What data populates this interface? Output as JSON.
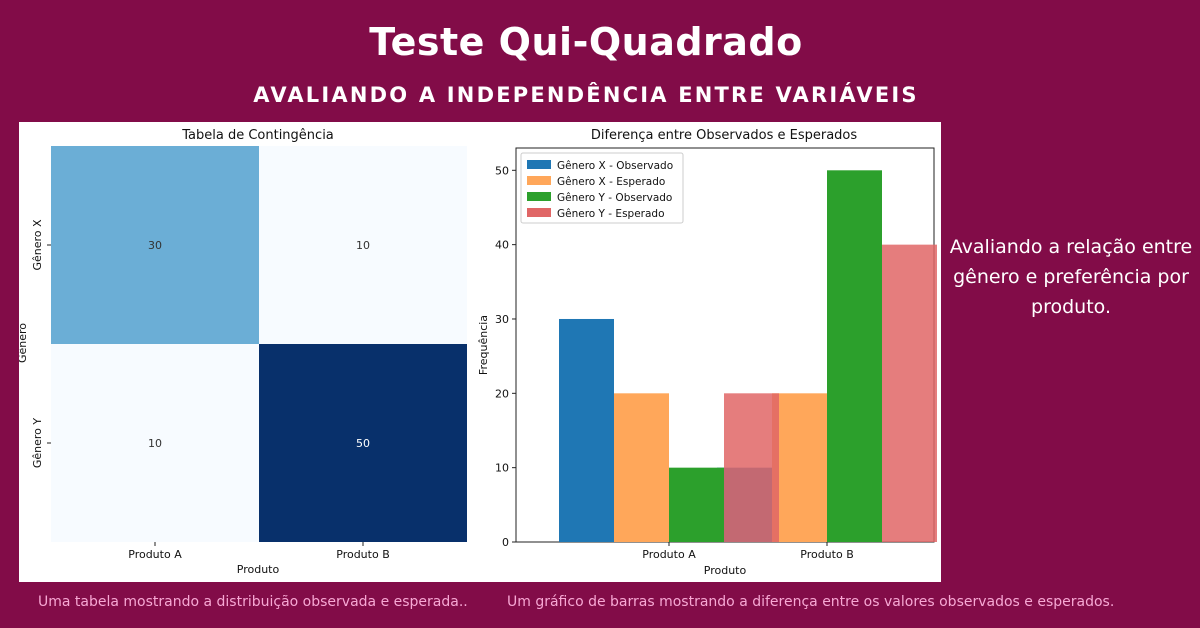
{
  "header": {
    "title": "Teste Qui-Quadrado",
    "subtitle": "AVALIANDO A INDEPENDÊNCIA ENTRE VARIÁVEIS"
  },
  "side_note": "Avaliando a relação entre gênero e preferência por produto.",
  "captions": {
    "left": "Uma tabela mostrando a distribuição observada e esperada..",
    "right": "Um gráfico de barras mostrando a diferença entre os valores observados e esperados."
  },
  "colors": {
    "background": "#820c48",
    "heat_low": "#f7fbff",
    "heat_mid": "#6baed6",
    "heat_high": "#08306b",
    "blue": "#1f77b4",
    "orange": "#ffa75a",
    "green": "#2ca02c",
    "red": "#e06666"
  },
  "chart_data": [
    {
      "type": "heatmap",
      "title": "Tabela de Contingência",
      "xlabel": "Produto",
      "ylabel": "Gênero",
      "x_categories": [
        "Produto A",
        "Produto B"
      ],
      "y_categories": [
        "Gênero X",
        "Gênero Y"
      ],
      "values": [
        [
          30,
          10
        ],
        [
          10,
          50
        ]
      ]
    },
    {
      "type": "bar",
      "title": "Diferença entre Observados e Esperados",
      "xlabel": "Produto",
      "ylabel": "Frequência",
      "categories": [
        "Produto A",
        "Produto B"
      ],
      "ylim": [
        0,
        53
      ],
      "yticks": [
        0,
        10,
        20,
        30,
        40,
        50
      ],
      "legend_position": "top-left",
      "series": [
        {
          "name": "Gênero X - Observado",
          "values": [
            30,
            10
          ],
          "color": "#1f77b4"
        },
        {
          "name": "Gênero X - Esperado",
          "values": [
            20,
            20
          ],
          "color": "#ffa75a"
        },
        {
          "name": "Gênero Y - Observado",
          "values": [
            10,
            50
          ],
          "color": "#2ca02c"
        },
        {
          "name": "Gênero Y - Esperado",
          "values": [
            20,
            40
          ],
          "color": "#e06666"
        }
      ]
    }
  ]
}
